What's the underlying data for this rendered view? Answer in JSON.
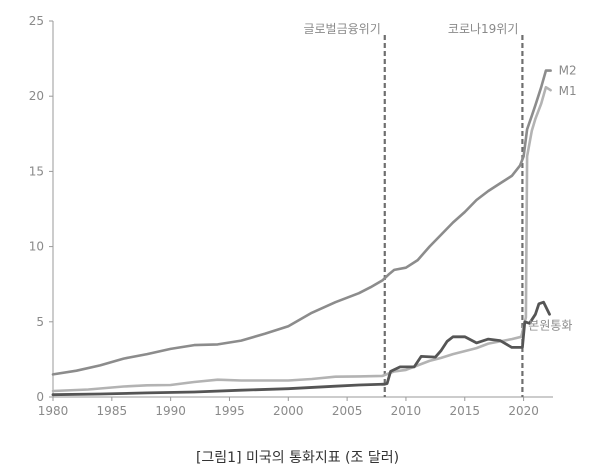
{
  "caption": "[그림1] 미국의 통화지표 (조 달러)",
  "chart_data": {
    "type": "line",
    "xlim": [
      1980,
      2022.5
    ],
    "ylim": [
      0,
      25
    ],
    "x_ticks": [
      1980,
      1985,
      1990,
      1995,
      2000,
      2005,
      2010,
      2015,
      2020
    ],
    "y_ticks": [
      0,
      5,
      10,
      15,
      20,
      25
    ],
    "grid": false,
    "annotations": [
      {
        "x": 2008.2,
        "label": "글로벌금융위기"
      },
      {
        "x": 2019.9,
        "label": "코로나19위기"
      }
    ],
    "series": [
      {
        "name": "M2",
        "color": "#8c8c8c",
        "points": [
          [
            1980,
            1.5
          ],
          [
            1982,
            1.75
          ],
          [
            1984,
            2.1
          ],
          [
            1986,
            2.55
          ],
          [
            1988,
            2.85
          ],
          [
            1990,
            3.2
          ],
          [
            1992,
            3.45
          ],
          [
            1994,
            3.5
          ],
          [
            1996,
            3.75
          ],
          [
            1998,
            4.2
          ],
          [
            2000,
            4.7
          ],
          [
            2002,
            5.6
          ],
          [
            2004,
            6.3
          ],
          [
            2006,
            6.9
          ],
          [
            2007,
            7.3
          ],
          [
            2008,
            7.75
          ],
          [
            2008.6,
            8.2
          ],
          [
            2009,
            8.45
          ],
          [
            2010,
            8.6
          ],
          [
            2011,
            9.1
          ],
          [
            2012,
            10.0
          ],
          [
            2013,
            10.8
          ],
          [
            2014,
            11.6
          ],
          [
            2015,
            12.3
          ],
          [
            2016,
            13.1
          ],
          [
            2017,
            13.7
          ],
          [
            2018,
            14.2
          ],
          [
            2019,
            14.7
          ],
          [
            2019.7,
            15.4
          ],
          [
            2020.0,
            16.0
          ],
          [
            2020.3,
            17.8
          ],
          [
            2020.7,
            18.7
          ],
          [
            2021,
            19.4
          ],
          [
            2021.5,
            20.6
          ],
          [
            2021.9,
            21.7
          ],
          [
            2022.3,
            21.7
          ]
        ]
      },
      {
        "name": "M1",
        "color": "#b3b3b3",
        "points": [
          [
            1980,
            0.4
          ],
          [
            1983,
            0.5
          ],
          [
            1986,
            0.7
          ],
          [
            1988,
            0.78
          ],
          [
            1990,
            0.8
          ],
          [
            1992,
            1.0
          ],
          [
            1994,
            1.15
          ],
          [
            1996,
            1.1
          ],
          [
            1998,
            1.1
          ],
          [
            2000,
            1.1
          ],
          [
            2002,
            1.2
          ],
          [
            2004,
            1.35
          ],
          [
            2006,
            1.37
          ],
          [
            2008,
            1.4
          ],
          [
            2009,
            1.7
          ],
          [
            2010,
            1.8
          ],
          [
            2011,
            2.1
          ],
          [
            2012,
            2.4
          ],
          [
            2013,
            2.6
          ],
          [
            2014,
            2.85
          ],
          [
            2015,
            3.05
          ],
          [
            2016,
            3.25
          ],
          [
            2017,
            3.55
          ],
          [
            2018,
            3.7
          ],
          [
            2019,
            3.85
          ],
          [
            2019.8,
            4.0
          ],
          [
            2020.2,
            5.3
          ],
          [
            2020.3,
            16.0
          ],
          [
            2020.7,
            17.7
          ],
          [
            2021,
            18.5
          ],
          [
            2021.5,
            19.5
          ],
          [
            2021.9,
            20.6
          ],
          [
            2022.3,
            20.4
          ]
        ]
      },
      {
        "name": "본원통화",
        "color": "#555555",
        "points": [
          [
            1980,
            0.15
          ],
          [
            1984,
            0.2
          ],
          [
            1988,
            0.27
          ],
          [
            1992,
            0.33
          ],
          [
            1996,
            0.45
          ],
          [
            2000,
            0.55
          ],
          [
            2004,
            0.72
          ],
          [
            2006,
            0.8
          ],
          [
            2008.2,
            0.85
          ],
          [
            2008.4,
            0.9
          ],
          [
            2008.7,
            1.7
          ],
          [
            2009.5,
            2.0
          ],
          [
            2010,
            2.0
          ],
          [
            2010.7,
            2.0
          ],
          [
            2011.3,
            2.7
          ],
          [
            2012.5,
            2.65
          ],
          [
            2013,
            3.1
          ],
          [
            2013.5,
            3.7
          ],
          [
            2014,
            4.0
          ],
          [
            2015,
            4.0
          ],
          [
            2016,
            3.6
          ],
          [
            2017,
            3.85
          ],
          [
            2018,
            3.75
          ],
          [
            2019,
            3.3
          ],
          [
            2019.9,
            3.3
          ],
          [
            2020.1,
            5.0
          ],
          [
            2020.5,
            4.9
          ],
          [
            2021,
            5.5
          ],
          [
            2021.3,
            6.2
          ],
          [
            2021.7,
            6.3
          ],
          [
            2022.2,
            5.5
          ]
        ]
      }
    ]
  }
}
